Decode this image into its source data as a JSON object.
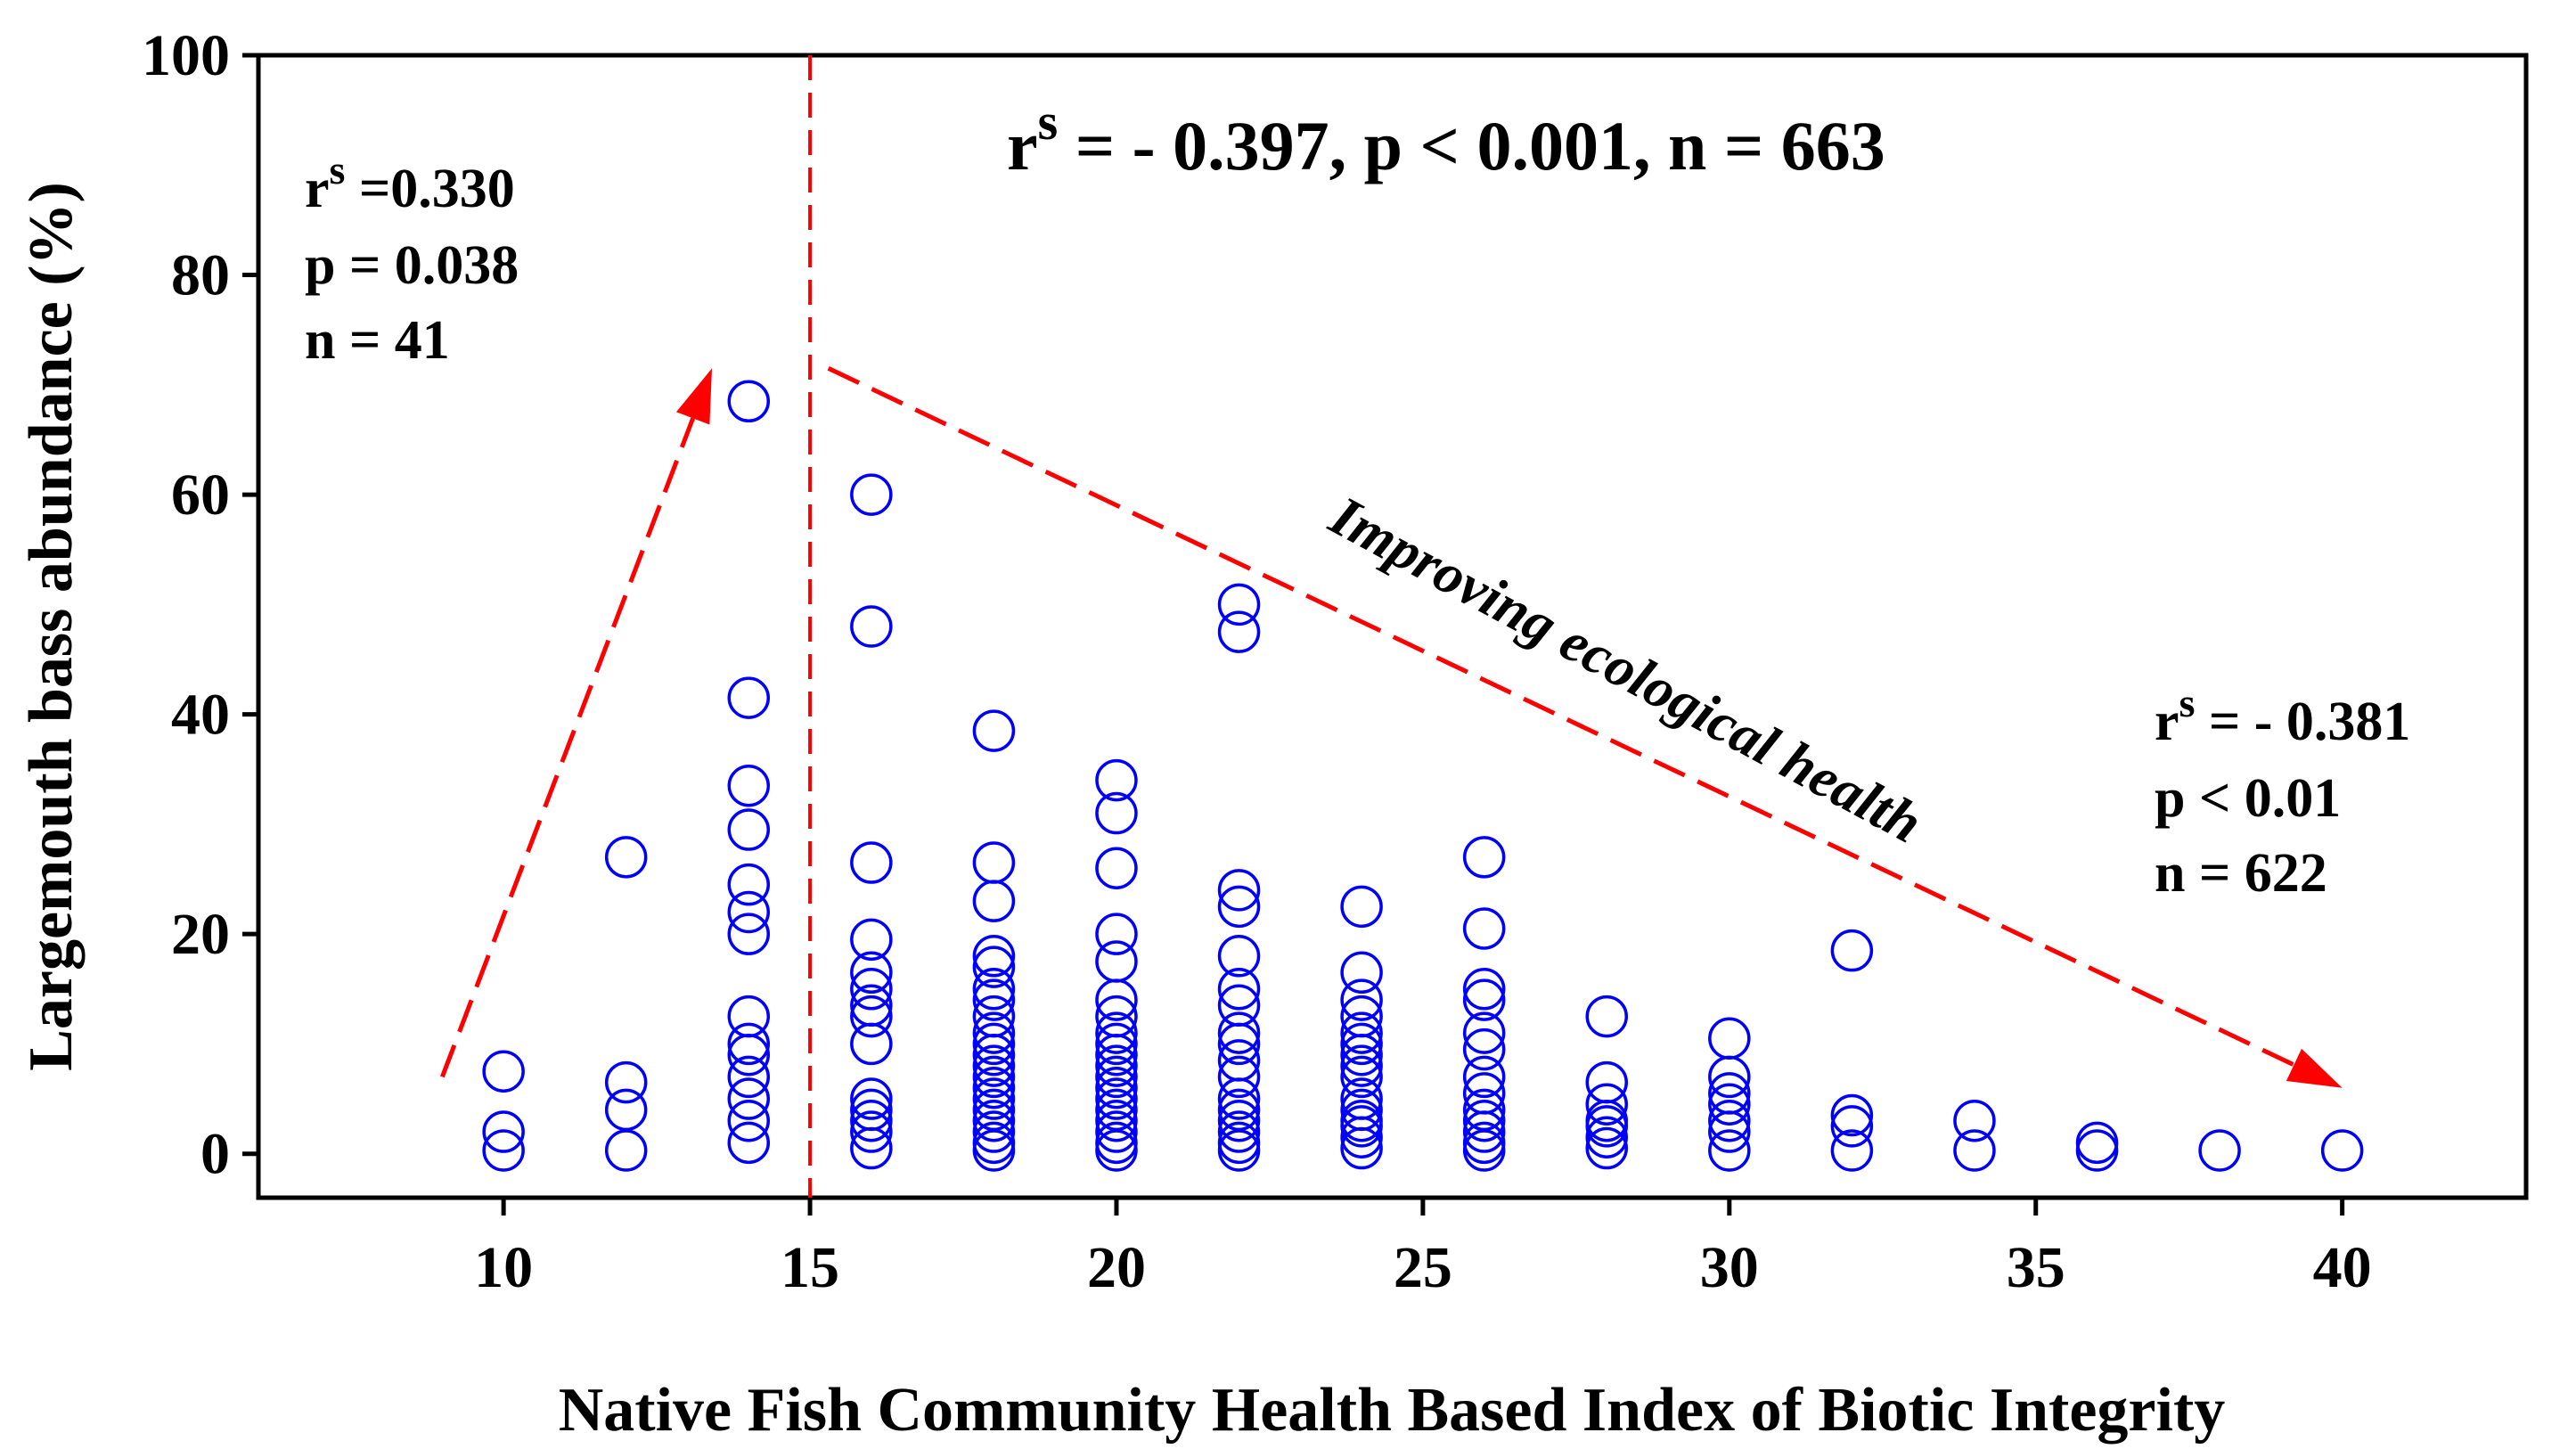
{
  "chart_data": {
    "type": "scatter",
    "title": "",
    "xlabel": "Native Fish Community Health Based Index of Biotic Integrity",
    "ylabel": "Largemouth bass abundance (%)",
    "xlim": [
      6,
      43
    ],
    "ylim": [
      -4,
      100
    ],
    "xticks": [
      10,
      15,
      20,
      25,
      30,
      35,
      40
    ],
    "yticks": [
      0,
      20,
      40,
      60,
      80,
      100
    ],
    "grid": false,
    "legend": "none",
    "marker": "open circle",
    "marker_color": "#0000ff",
    "threshold_x": 15,
    "annotations": {
      "overall": {
        "lhs": "r",
        "sup": "s",
        "rhs": " = - 0.397, p  <  0.001, n  =  663"
      },
      "left": {
        "lhs": "r",
        "sup": "s",
        "rhs": " =0.330",
        "p": "p  =  0.038",
        "n": "n  =  41"
      },
      "right": {
        "lhs": "r",
        "sup": "s",
        "rhs": " = - 0.381",
        "p": "p  <  0.01",
        "n": "n  =  622"
      },
      "arrow_label": "Improving ecological health"
    },
    "annotation_color": "#ff0000",
    "arrows": [
      {
        "name": "left-trend-arrow",
        "from": [
          9,
          7
        ],
        "to": [
          13.4,
          71.5
        ]
      },
      {
        "name": "right-trend-arrow",
        "from": [
          15.3,
          71.5
        ],
        "to": [
          40,
          6
        ]
      }
    ],
    "series": [
      {
        "name": "sites",
        "points": [
          [
            10,
            7.5
          ],
          [
            10,
            2
          ],
          [
            10,
            0.3
          ],
          [
            12,
            27
          ],
          [
            12,
            6.5
          ],
          [
            12,
            4
          ],
          [
            12,
            0.3
          ],
          [
            14,
            68.5
          ],
          [
            14,
            41.5
          ],
          [
            14,
            33.5
          ],
          [
            14,
            29.5
          ],
          [
            14,
            24.5
          ],
          [
            14,
            22
          ],
          [
            14,
            20
          ],
          [
            14,
            12.5
          ],
          [
            14,
            10
          ],
          [
            14,
            9
          ],
          [
            14,
            7
          ],
          [
            14,
            5
          ],
          [
            14,
            3
          ],
          [
            14,
            1
          ],
          [
            16,
            60
          ],
          [
            16,
            48
          ],
          [
            16,
            26.5
          ],
          [
            16,
            19.5
          ],
          [
            16,
            16.5
          ],
          [
            16,
            15
          ],
          [
            16,
            13.5
          ],
          [
            16,
            12.5
          ],
          [
            16,
            10
          ],
          [
            16,
            5
          ],
          [
            16,
            4
          ],
          [
            16,
            3
          ],
          [
            16,
            2
          ],
          [
            16,
            0.5
          ],
          [
            18,
            38.5
          ],
          [
            18,
            26.5
          ],
          [
            18,
            23
          ],
          [
            18,
            18
          ],
          [
            18,
            17
          ],
          [
            18,
            15
          ],
          [
            18,
            14
          ],
          [
            18,
            12.5
          ],
          [
            18,
            11
          ],
          [
            18,
            10
          ],
          [
            18,
            9
          ],
          [
            18,
            8
          ],
          [
            18,
            7
          ],
          [
            18,
            6
          ],
          [
            18,
            5
          ],
          [
            18,
            4
          ],
          [
            18,
            3
          ],
          [
            18,
            2
          ],
          [
            18,
            1
          ],
          [
            18,
            0.3
          ],
          [
            20,
            34
          ],
          [
            20,
            31
          ],
          [
            20,
            26
          ],
          [
            20,
            20
          ],
          [
            20,
            17.5
          ],
          [
            20,
            14
          ],
          [
            20,
            12.5
          ],
          [
            20,
            11
          ],
          [
            20,
            10
          ],
          [
            20,
            9
          ],
          [
            20,
            8
          ],
          [
            20,
            7
          ],
          [
            20,
            6
          ],
          [
            20,
            5
          ],
          [
            20,
            4
          ],
          [
            20,
            3
          ],
          [
            20,
            2
          ],
          [
            20,
            1
          ],
          [
            20,
            0.3
          ],
          [
            22,
            50
          ],
          [
            22,
            47.5
          ],
          [
            22,
            24
          ],
          [
            22,
            22.5
          ],
          [
            22,
            18
          ],
          [
            22,
            15
          ],
          [
            22,
            13.5
          ],
          [
            22,
            11
          ],
          [
            22,
            10
          ],
          [
            22,
            8.5
          ],
          [
            22,
            7
          ],
          [
            22,
            5
          ],
          [
            22,
            4
          ],
          [
            22,
            3
          ],
          [
            22,
            2
          ],
          [
            22,
            1
          ],
          [
            22,
            0.3
          ],
          [
            24,
            22.5
          ],
          [
            24,
            16.5
          ],
          [
            24,
            14
          ],
          [
            24,
            12.5
          ],
          [
            24,
            11
          ],
          [
            24,
            10
          ],
          [
            24,
            9
          ],
          [
            24,
            8
          ],
          [
            24,
            7
          ],
          [
            24,
            5
          ],
          [
            24,
            4
          ],
          [
            24,
            3
          ],
          [
            24,
            2.5
          ],
          [
            24,
            1.5
          ],
          [
            24,
            0.5
          ],
          [
            26,
            27
          ],
          [
            26,
            20.5
          ],
          [
            26,
            15
          ],
          [
            26,
            14
          ],
          [
            26,
            11
          ],
          [
            26,
            9.5
          ],
          [
            26,
            7
          ],
          [
            26,
            5.5
          ],
          [
            26,
            4
          ],
          [
            26,
            3
          ],
          [
            26,
            2
          ],
          [
            26,
            1
          ],
          [
            26,
            0.3
          ],
          [
            28,
            12.5
          ],
          [
            28,
            6.5
          ],
          [
            28,
            4.5
          ],
          [
            28,
            3
          ],
          [
            28,
            2.5
          ],
          [
            28,
            1.5
          ],
          [
            28,
            0.5
          ],
          [
            30,
            10.5
          ],
          [
            30,
            7
          ],
          [
            30,
            5.5
          ],
          [
            30,
            4.5
          ],
          [
            30,
            3
          ],
          [
            30,
            2
          ],
          [
            30,
            0.3
          ],
          [
            32,
            18.5
          ],
          [
            32,
            3.5
          ],
          [
            32,
            2.5
          ],
          [
            32,
            0.3
          ],
          [
            34,
            3
          ],
          [
            34,
            0.3
          ],
          [
            36,
            1
          ],
          [
            36,
            0.3
          ],
          [
            38,
            0.3
          ],
          [
            40,
            0.3
          ]
        ]
      }
    ]
  }
}
